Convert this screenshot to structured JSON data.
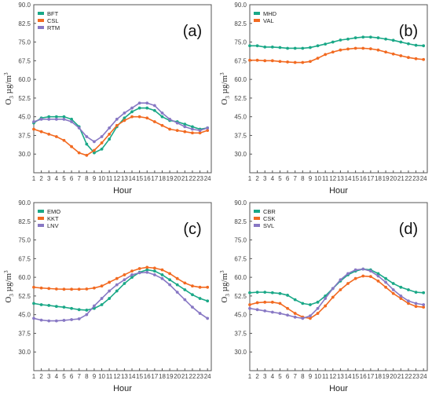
{
  "figure": {
    "colors": {
      "teal": "#1aa887",
      "orange": "#f26a21",
      "purple": "#8878c4"
    }
  },
  "chart_data": [
    {
      "panel_label": "(a)",
      "type": "line",
      "xlabel": "Hour",
      "ylabel": "O3 µg/m3",
      "x": [
        1,
        2,
        3,
        4,
        5,
        6,
        7,
        8,
        9,
        10,
        11,
        12,
        13,
        14,
        15,
        16,
        17,
        18,
        19,
        20,
        21,
        22,
        23,
        24
      ],
      "xticks": [
        1,
        2,
        3,
        4,
        5,
        6,
        7,
        8,
        9,
        10,
        11,
        12,
        13,
        14,
        15,
        16,
        17,
        18,
        19,
        20,
        21,
        22,
        23,
        24
      ],
      "yticks": [
        "30.0",
        "37.5",
        "45.0",
        "52.5",
        "60.0",
        "67.5",
        "75.0",
        "82.5",
        "90.0"
      ],
      "ylim": [
        22.5,
        90
      ],
      "legend_position": "top-left",
      "series": [
        {
          "name": "BFT",
          "color": "#1aa887",
          "values": [
            42.5,
            44.5,
            45.0,
            45.0,
            45.0,
            44.0,
            41.0,
            34.0,
            30.5,
            32.0,
            36.0,
            41.0,
            44.5,
            47.0,
            48.5,
            48.5,
            47.5,
            45.0,
            43.5,
            43.0,
            42.0,
            41.0,
            40.0,
            40.5
          ]
        },
        {
          "name": "CSL",
          "color": "#f26a21",
          "values": [
            40.0,
            39.0,
            38.0,
            37.0,
            35.5,
            33.0,
            30.5,
            29.5,
            31.5,
            34.5,
            38.0,
            41.5,
            43.5,
            45.0,
            45.0,
            44.5,
            43.0,
            41.5,
            40.0,
            39.5,
            39.0,
            38.5,
            38.5,
            39.5
          ]
        },
        {
          "name": "RTM",
          "color": "#8878c4",
          "values": [
            43.0,
            44.0,
            44.0,
            44.0,
            44.0,
            43.0,
            40.5,
            37.0,
            35.0,
            37.0,
            40.5,
            44.0,
            46.5,
            48.5,
            50.5,
            50.5,
            49.5,
            46.5,
            44.0,
            42.5,
            41.0,
            40.0,
            39.5,
            40.5
          ]
        }
      ]
    },
    {
      "panel_label": "(b)",
      "type": "line",
      "xlabel": "Hour",
      "ylabel": "O3 µg/m3",
      "x": [
        1,
        2,
        3,
        4,
        5,
        6,
        7,
        8,
        9,
        10,
        11,
        12,
        13,
        14,
        15,
        16,
        17,
        18,
        19,
        20,
        21,
        22,
        23,
        24
      ],
      "xticks": [
        1,
        2,
        3,
        4,
        5,
        6,
        7,
        8,
        9,
        10,
        11,
        12,
        13,
        14,
        15,
        16,
        17,
        18,
        19,
        20,
        21,
        22,
        23,
        24
      ],
      "yticks": [
        "30.0",
        "37.5",
        "45.0",
        "52.5",
        "60.0",
        "67.5",
        "75.0",
        "82.5",
        "90.0"
      ],
      "ylim": [
        22.5,
        90
      ],
      "legend_position": "top-left",
      "series": [
        {
          "name": "MHD",
          "color": "#1aa887",
          "values": [
            73.5,
            73.5,
            73.0,
            73.0,
            72.8,
            72.5,
            72.5,
            72.5,
            72.8,
            73.5,
            74.2,
            75.0,
            75.8,
            76.2,
            76.7,
            77.0,
            77.0,
            76.7,
            76.2,
            75.7,
            75.0,
            74.3,
            73.7,
            73.5
          ]
        },
        {
          "name": "VAL",
          "color": "#f26a21",
          "values": [
            67.7,
            67.7,
            67.5,
            67.5,
            67.2,
            67.0,
            66.8,
            66.8,
            67.2,
            68.5,
            70.0,
            71.0,
            71.8,
            72.2,
            72.5,
            72.5,
            72.3,
            71.8,
            71.0,
            70.2,
            69.5,
            68.8,
            68.3,
            68.0
          ]
        }
      ]
    },
    {
      "panel_label": "(c)",
      "type": "line",
      "xlabel": "Hour",
      "ylabel": "O3 µg/m3",
      "x": [
        1,
        2,
        3,
        4,
        5,
        6,
        7,
        8,
        9,
        10,
        11,
        12,
        13,
        14,
        15,
        16,
        17,
        18,
        19,
        20,
        21,
        22,
        23,
        24
      ],
      "xticks": [
        1,
        2,
        3,
        4,
        5,
        6,
        7,
        8,
        9,
        10,
        11,
        12,
        13,
        14,
        15,
        16,
        17,
        18,
        19,
        20,
        21,
        22,
        23,
        24
      ],
      "yticks": [
        "30.0",
        "37.5",
        "45.0",
        "52.5",
        "60.0",
        "67.5",
        "75.0",
        "82.5",
        "90.0"
      ],
      "ylim": [
        22.5,
        90
      ],
      "legend_position": "top-left",
      "series": [
        {
          "name": "EMO",
          "color": "#1aa887",
          "values": [
            49.5,
            49.0,
            48.7,
            48.3,
            48.0,
            47.5,
            47.0,
            46.8,
            47.5,
            49.0,
            51.5,
            54.5,
            57.5,
            60.0,
            62.0,
            63.0,
            62.5,
            61.0,
            59.0,
            57.0,
            55.0,
            53.0,
            51.5,
            50.5
          ]
        },
        {
          "name": "KKT",
          "color": "#f26a21",
          "values": [
            56.0,
            55.7,
            55.5,
            55.3,
            55.2,
            55.2,
            55.2,
            55.3,
            55.7,
            56.5,
            58.0,
            59.5,
            61.0,
            62.5,
            63.5,
            64.0,
            63.7,
            63.0,
            61.5,
            59.5,
            57.7,
            56.5,
            56.0,
            56.0
          ]
        },
        {
          "name": "LNV",
          "color": "#8878c4",
          "values": [
            43.5,
            42.8,
            42.5,
            42.5,
            42.7,
            43.0,
            43.3,
            45.0,
            48.5,
            51.5,
            54.5,
            57.0,
            59.0,
            61.0,
            61.8,
            62.0,
            61.0,
            59.5,
            57.0,
            54.0,
            51.0,
            48.0,
            45.5,
            43.5
          ]
        }
      ]
    },
    {
      "panel_label": "(d)",
      "type": "line",
      "xlabel": "Hour",
      "ylabel": "O3 µg/m3",
      "x": [
        1,
        2,
        3,
        4,
        5,
        6,
        7,
        8,
        9,
        10,
        11,
        12,
        13,
        14,
        15,
        16,
        17,
        18,
        19,
        20,
        21,
        22,
        23,
        24
      ],
      "xticks": [
        1,
        2,
        3,
        4,
        5,
        6,
        7,
        8,
        9,
        10,
        11,
        12,
        13,
        14,
        15,
        16,
        17,
        18,
        19,
        20,
        21,
        22,
        23,
        24
      ],
      "yticks": [
        "30.0",
        "37.5",
        "45.0",
        "52.5",
        "60.0",
        "67.5",
        "75.0",
        "82.5",
        "90.0"
      ],
      "ylim": [
        22.5,
        90
      ],
      "legend_position": "top-left",
      "series": [
        {
          "name": "CBR",
          "color": "#1aa887",
          "values": [
            53.8,
            54.0,
            54.0,
            53.8,
            53.5,
            52.8,
            51.0,
            49.5,
            49.0,
            50.0,
            52.5,
            55.5,
            58.5,
            61.0,
            62.5,
            63.3,
            63.0,
            61.5,
            59.5,
            57.5,
            56.0,
            55.0,
            54.0,
            53.8
          ]
        },
        {
          "name": "CSK",
          "color": "#f26a21",
          "values": [
            49.0,
            49.8,
            50.0,
            50.0,
            49.5,
            47.5,
            45.5,
            44.0,
            43.5,
            45.5,
            48.5,
            52.0,
            55.0,
            57.5,
            59.5,
            60.5,
            60.3,
            58.5,
            56.0,
            53.5,
            51.5,
            49.5,
            48.3,
            48.0
          ]
        },
        {
          "name": "SVL",
          "color": "#8878c4",
          "values": [
            47.5,
            47.0,
            46.5,
            46.0,
            45.5,
            44.8,
            44.0,
            43.5,
            44.5,
            47.5,
            51.5,
            55.5,
            59.0,
            61.5,
            63.0,
            63.3,
            62.5,
            60.5,
            58.0,
            55.0,
            52.5,
            50.5,
            49.5,
            49.0
          ]
        }
      ]
    }
  ]
}
